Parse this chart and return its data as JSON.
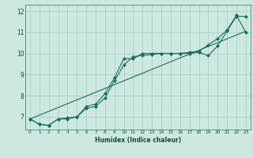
{
  "xlabel": "Humidex (Indice chaleur)",
  "bg_color": "#cce8e0",
  "grid_color": "#aaccc4",
  "line_color": "#1a6e60",
  "xlim": [
    -0.5,
    23.5
  ],
  "ylim": [
    6.4,
    12.3
  ],
  "xticks": [
    0,
    1,
    2,
    3,
    4,
    5,
    6,
    7,
    8,
    9,
    10,
    11,
    12,
    13,
    14,
    15,
    16,
    17,
    18,
    19,
    20,
    21,
    22,
    23
  ],
  "yticks": [
    7,
    8,
    9,
    10,
    11,
    12
  ],
  "series1_x": [
    0,
    1,
    2,
    3,
    4,
    5,
    6,
    7,
    8,
    9,
    10,
    11,
    12,
    13,
    14,
    15,
    16,
    17,
    18,
    19,
    20,
    21,
    22,
    23
  ],
  "series1_y": [
    6.9,
    6.65,
    6.6,
    6.9,
    6.95,
    7.0,
    7.5,
    7.6,
    8.1,
    8.85,
    9.75,
    9.75,
    10.0,
    10.0,
    10.0,
    10.0,
    10.0,
    10.0,
    10.05,
    9.9,
    10.35,
    11.05,
    11.75,
    11.75
  ],
  "series2_x": [
    0,
    1,
    2,
    3,
    4,
    5,
    6,
    7,
    8,
    9,
    10,
    11,
    12,
    13,
    14,
    15,
    16,
    17,
    18,
    19,
    20,
    21,
    22,
    23
  ],
  "series2_y": [
    6.9,
    6.65,
    6.6,
    6.9,
    6.9,
    7.0,
    7.4,
    7.5,
    7.9,
    8.7,
    9.45,
    9.85,
    9.9,
    9.95,
    10.0,
    10.0,
    10.0,
    10.05,
    10.1,
    10.4,
    10.7,
    11.1,
    11.8,
    11.0
  ],
  "series3_x": [
    0,
    23
  ],
  "series3_y": [
    6.9,
    11.05
  ]
}
